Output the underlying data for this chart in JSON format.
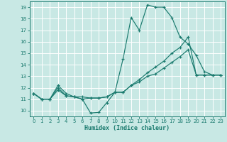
{
  "xlabel": "Humidex (Indice chaleur)",
  "xlim": [
    -0.5,
    23.5
  ],
  "ylim": [
    9.5,
    19.5
  ],
  "xticks": [
    0,
    1,
    2,
    3,
    4,
    5,
    6,
    7,
    8,
    9,
    10,
    11,
    12,
    13,
    14,
    15,
    16,
    17,
    18,
    19,
    20,
    21,
    22,
    23
  ],
  "yticks": [
    10,
    11,
    12,
    13,
    14,
    15,
    16,
    17,
    18,
    19
  ],
  "bg_color": "#c8e8e4",
  "grid_color": "#ffffff",
  "line_color": "#1a7a6e",
  "series": [
    {
      "x": [
        0,
        1,
        2,
        3,
        4,
        5,
        6,
        7,
        8,
        9,
        10,
        11,
        12,
        13,
        14,
        15,
        16,
        17,
        18,
        19,
        20,
        21,
        22,
        23
      ],
      "y": [
        11.5,
        11.0,
        11.0,
        12.2,
        11.5,
        11.2,
        11.0,
        9.8,
        9.85,
        10.7,
        11.6,
        14.5,
        18.1,
        17.0,
        19.2,
        19.0,
        19.0,
        18.1,
        16.4,
        15.8,
        14.8,
        13.4,
        13.1,
        13.1
      ]
    },
    {
      "x": [
        0,
        1,
        2,
        3,
        4,
        5,
        6,
        7,
        8,
        9,
        10,
        11,
        12,
        13,
        14,
        15,
        16,
        17,
        18,
        19,
        20,
        21,
        22,
        23
      ],
      "y": [
        11.5,
        11.0,
        11.0,
        12.0,
        11.3,
        11.2,
        11.2,
        11.1,
        11.1,
        11.2,
        11.6,
        11.6,
        12.2,
        12.7,
        13.3,
        13.8,
        14.3,
        15.0,
        15.5,
        16.4,
        13.1,
        13.1,
        13.1,
        13.1
      ]
    },
    {
      "x": [
        0,
        1,
        2,
        3,
        4,
        5,
        6,
        7,
        8,
        9,
        10,
        11,
        12,
        13,
        14,
        15,
        16,
        17,
        18,
        19,
        20,
        21,
        22,
        23
      ],
      "y": [
        11.5,
        11.0,
        11.0,
        11.8,
        11.3,
        11.2,
        11.0,
        11.1,
        11.1,
        11.2,
        11.6,
        11.6,
        12.2,
        12.5,
        13.0,
        13.2,
        13.7,
        14.2,
        14.7,
        15.3,
        13.1,
        13.1,
        13.1,
        13.1
      ]
    }
  ]
}
